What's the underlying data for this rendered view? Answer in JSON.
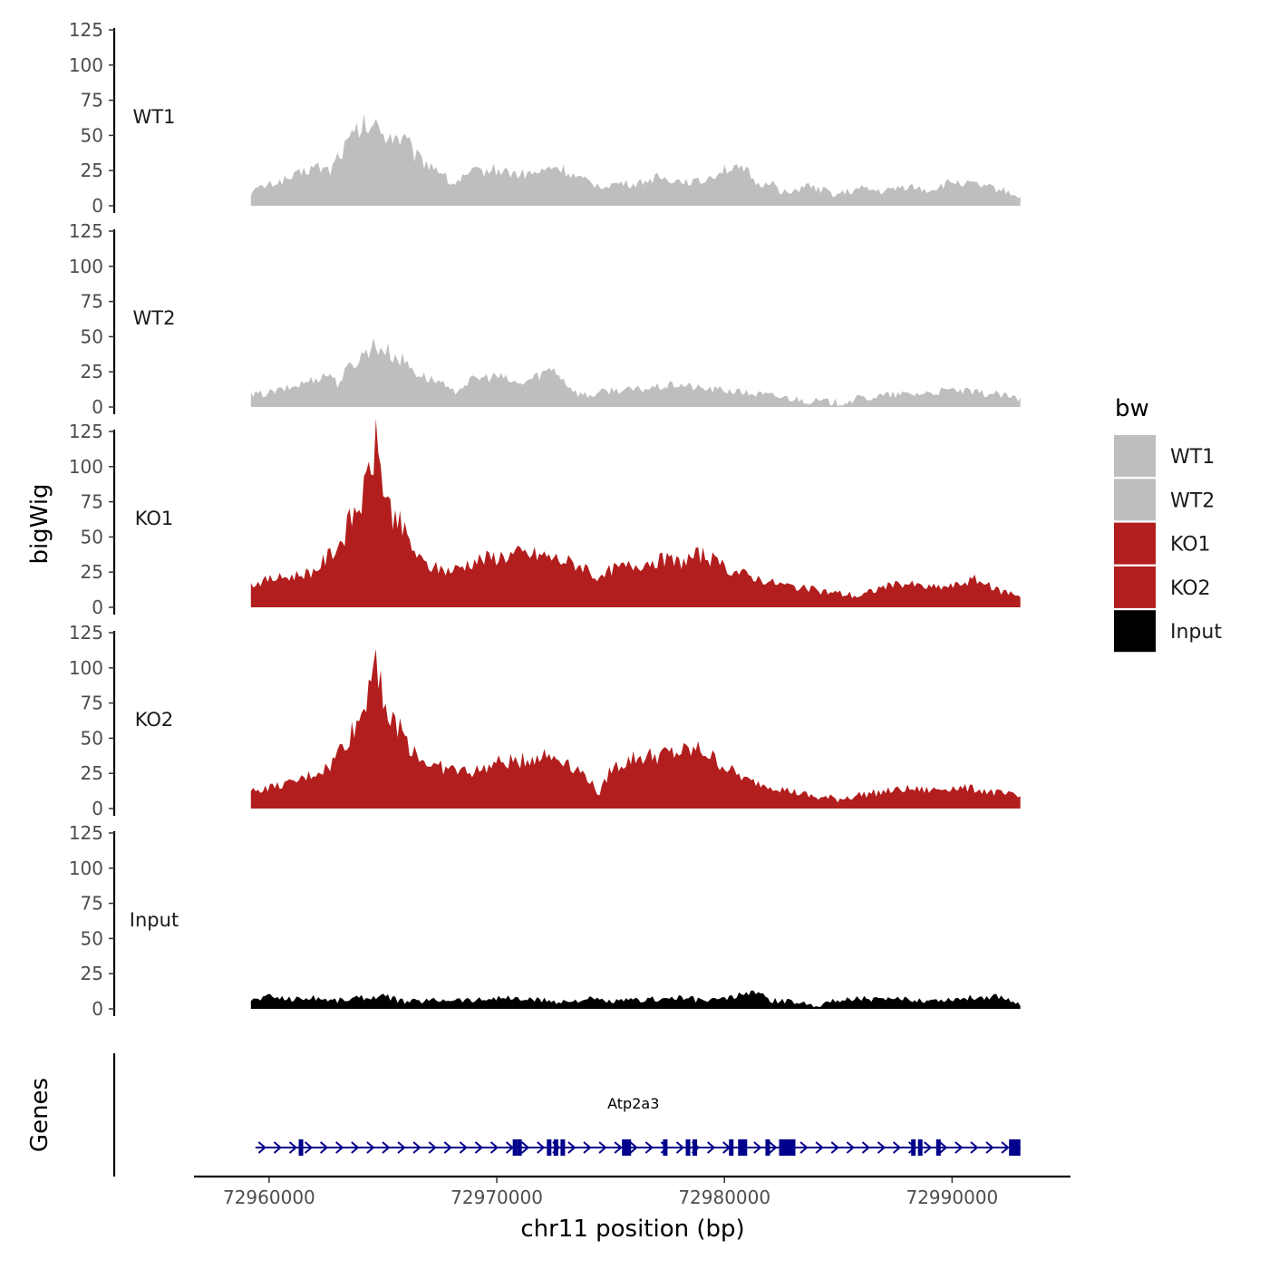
{
  "chart_data": {
    "type": "area",
    "ylabel": "bigWig",
    "genes_label": "Genes",
    "xlabel": "chr11 position (bp)",
    "x_ticks": [
      "72960000",
      "72970000",
      "72980000",
      "72990000"
    ],
    "x_tick_values": [
      72960000,
      72970000,
      72980000,
      72990000
    ],
    "xlim": [
      72956700,
      72995200
    ],
    "ylim": [
      0,
      125
    ],
    "y_ticks": [
      "0",
      "25",
      "50",
      "75",
      "100",
      "125"
    ],
    "y_tick_values": [
      0,
      25,
      50,
      75,
      100,
      125
    ],
    "region": [
      72959200,
      72993000
    ],
    "legend": {
      "title": "bw",
      "items": [
        {
          "label": "WT1",
          "color": "#bebebe"
        },
        {
          "label": "WT2",
          "color": "#bebebe"
        },
        {
          "label": "KO1",
          "color": "#b21e1e"
        },
        {
          "label": "KO2",
          "color": "#b21e1e"
        },
        {
          "label": "Input",
          "color": "#000000"
        }
      ]
    },
    "series": [
      {
        "name": "WT1",
        "color": "#bebebe",
        "x": [
          72959200,
          72960000,
          72961000,
          72962000,
          72962700,
          72963000,
          72963500,
          72964000,
          72964500,
          72965000,
          72965500,
          72966000,
          72966500,
          72967000,
          72967500,
          72968000,
          72969000,
          72970000,
          72971000,
          72972000,
          72972500,
          72973000,
          72973500,
          72974000,
          72974500,
          72975000,
          72975500,
          72976000,
          72977000,
          72978000,
          72979000,
          72980000,
          72981000,
          72981500,
          72982000,
          72982500,
          72983000,
          72983500,
          72984000,
          72985000,
          72986000,
          72987000,
          72988000,
          72989000,
          72990000,
          72991000,
          72992000,
          72993000
        ],
        "values": [
          10,
          15,
          20,
          28,
          25,
          35,
          45,
          55,
          57,
          52,
          50,
          46,
          34,
          30,
          26,
          15,
          24,
          26,
          22,
          24,
          28,
          25,
          20,
          17,
          14,
          15,
          16,
          15,
          20,
          18,
          17,
          27,
          24,
          14,
          18,
          10,
          8,
          15,
          12,
          8,
          12,
          10,
          14,
          11,
          17,
          15,
          12,
          7
        ]
      },
      {
        "name": "WT2",
        "color": "#bebebe",
        "x": [
          72959200,
          72960000,
          72961000,
          72962000,
          72962700,
          72963000,
          72963500,
          72964000,
          72964500,
          72965000,
          72965500,
          72966000,
          72966500,
          72967000,
          72967500,
          72968000,
          72969000,
          72970000,
          72971000,
          72972000,
          72972500,
          72973000,
          72973500,
          72974000,
          72975000,
          72976000,
          72977000,
          72978000,
          72979000,
          72980000,
          72981000,
          72982000,
          72983000,
          72984000,
          72985000,
          72986000,
          72987000,
          72988000,
          72989000,
          72990000,
          72991000,
          72992000,
          72993000
        ],
        "values": [
          8,
          10,
          14,
          20,
          24,
          16,
          28,
          35,
          44,
          42,
          36,
          32,
          24,
          20,
          18,
          10,
          20,
          22,
          16,
          24,
          28,
          18,
          10,
          8,
          12,
          12,
          14,
          16,
          13,
          12,
          10,
          8,
          6,
          4,
          3,
          6,
          8,
          9,
          10,
          12,
          10,
          9,
          5
        ]
      },
      {
        "name": "KO1",
        "color": "#b21e1e",
        "x": [
          72959200,
          72960000,
          72961000,
          72962000,
          72962700,
          72963200,
          72963700,
          72964200,
          72964500,
          72964700,
          72965000,
          72965300,
          72965700,
          72966200,
          72966700,
          72967200,
          72968000,
          72969000,
          72970000,
          72971000,
          72972000,
          72973000,
          72974000,
          72974500,
          72975000,
          72976000,
          72977000,
          72978000,
          72979000,
          72980000,
          72981000,
          72982000,
          72983000,
          72984000,
          72985000,
          72986000,
          72987000,
          72988000,
          72989000,
          72990000,
          72991000,
          72992000,
          72993000
        ],
        "values": [
          16,
          20,
          22,
          26,
          38,
          48,
          66,
          80,
          105,
          115,
          90,
          70,
          60,
          45,
          32,
          28,
          26,
          33,
          36,
          38,
          37,
          33,
          28,
          18,
          27,
          30,
          34,
          32,
          38,
          28,
          23,
          18,
          15,
          12,
          10,
          8,
          15,
          17,
          14,
          15,
          20,
          12,
          9
        ]
      },
      {
        "name": "KO2",
        "color": "#b21e1e",
        "x": [
          72959200,
          72960000,
          72961000,
          72962000,
          72962700,
          72963200,
          72963700,
          72964200,
          72964500,
          72964700,
          72965000,
          72965300,
          72965700,
          72966200,
          72966700,
          72967200,
          72968000,
          72969000,
          72970000,
          72971000,
          72972000,
          72973000,
          72974000,
          72974500,
          72975000,
          72976000,
          72977000,
          72978000,
          72979000,
          72980000,
          72981000,
          72982000,
          72983000,
          72984000,
          72985000,
          72986000,
          72987000,
          72988000,
          72989000,
          72990000,
          72991000,
          72992000,
          72993000
        ],
        "values": [
          12,
          15,
          18,
          25,
          30,
          45,
          55,
          72,
          105,
          112,
          85,
          60,
          58,
          45,
          35,
          30,
          28,
          26,
          32,
          34,
          38,
          35,
          22,
          10,
          28,
          36,
          38,
          40,
          42,
          30,
          20,
          16,
          12,
          8,
          7,
          10,
          12,
          14,
          13,
          15,
          14,
          11,
          8
        ]
      },
      {
        "name": "Input",
        "color": "#000000",
        "x": [
          72959200,
          72960000,
          72961000,
          72962000,
          72963000,
          72964000,
          72965000,
          72966000,
          72967000,
          72968000,
          72969000,
          72970000,
          72971000,
          72972000,
          72973000,
          72974000,
          72975000,
          72976000,
          72977000,
          72978000,
          72979000,
          72980000,
          72981000,
          72981300,
          72982000,
          72983000,
          72984000,
          72985000,
          72986000,
          72987000,
          72988000,
          72989000,
          72990000,
          72991000,
          72992000,
          72993000
        ],
        "values": [
          6,
          9,
          7,
          8,
          6,
          8,
          9,
          5,
          6,
          7,
          6,
          8,
          7,
          6,
          5,
          7,
          5,
          6,
          7,
          8,
          6,
          7,
          11,
          13,
          6,
          5,
          3,
          6,
          8,
          6,
          7,
          6,
          7,
          8,
          9,
          4
        ]
      }
    ],
    "gene": {
      "name": "Atp2a3",
      "color": "#00008b",
      "start": 72959400,
      "end": 72993000,
      "exons": [
        72961300,
        72970700,
        72970900,
        72972200,
        72972500,
        72972800,
        72975500,
        72977300,
        72978300,
        72978600,
        72980200,
        72980600,
        72981800,
        72982400,
        72988200,
        72988500,
        72989300,
        72992500
      ]
    }
  }
}
